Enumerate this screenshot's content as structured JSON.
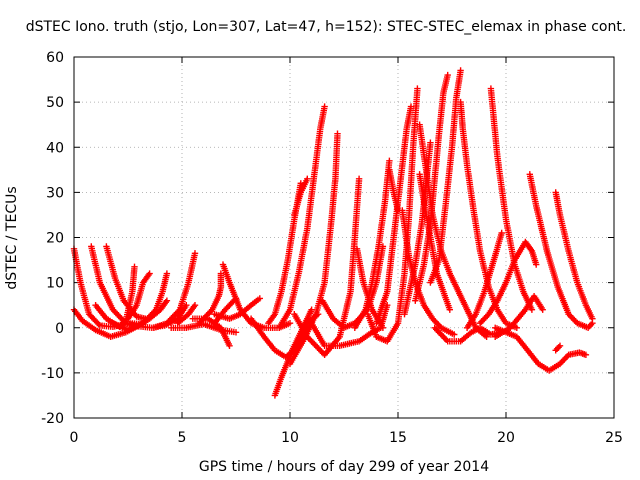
{
  "chart_data": {
    "type": "scatter",
    "title": "dSTEC Iono. truth (stjo, Lon=307, Lat=47, h=152): STEC-STEC_elemax in phase cont.",
    "xlabel": "GPS time / hours of day 299 of year 2014",
    "ylabel": "dSTEC  / TECUs",
    "xlim": [
      0,
      25
    ],
    "ylim": [
      -20,
      60
    ],
    "x_ticks": [
      0,
      5,
      10,
      15,
      20,
      25
    ],
    "y_ticks": [
      -20,
      -10,
      0,
      10,
      20,
      30,
      40,
      50,
      60
    ],
    "x_tick_labels": [
      "0",
      "5",
      "10",
      "15",
      "20",
      "25"
    ],
    "y_tick_labels": [
      "-20",
      "-10",
      "0",
      "10",
      "20",
      "30",
      "40",
      "50",
      "60"
    ],
    "grid": true,
    "marker": "plus",
    "color": "#ff0000",
    "arcs": [
      [
        [
          0.0,
          17.5
        ],
        [
          0.3,
          10
        ],
        [
          0.7,
          3
        ],
        [
          1.2,
          0.5
        ],
        [
          1.8,
          0.2
        ],
        [
          2.5,
          1
        ],
        [
          3.2,
          0.8
        ]
      ],
      [
        [
          0.0,
          4
        ],
        [
          0.4,
          1.5
        ],
        [
          1.0,
          -0.5
        ],
        [
          1.7,
          -2
        ],
        [
          2.4,
          -1
        ],
        [
          3.0,
          0.5
        ],
        [
          3.5,
          2
        ],
        [
          4.0,
          4
        ],
        [
          4.3,
          6
        ]
      ],
      [
        [
          0.8,
          18
        ],
        [
          1.2,
          10
        ],
        [
          1.8,
          4
        ],
        [
          2.4,
          1
        ],
        [
          3.0,
          0.3
        ],
        [
          3.6,
          0
        ],
        [
          4.2,
          0.5
        ],
        [
          4.8,
          2
        ],
        [
          5.2,
          5
        ]
      ],
      [
        [
          1.5,
          18
        ],
        [
          1.9,
          11
        ],
        [
          2.3,
          6
        ],
        [
          2.9,
          2.5
        ],
        [
          3.3,
          2
        ]
      ],
      [
        [
          1.0,
          5
        ],
        [
          1.5,
          2
        ],
        [
          2.1,
          0.2
        ],
        [
          2.4,
          1.5
        ],
        [
          2.7,
          8
        ],
        [
          2.8,
          13.5
        ]
      ],
      [
        [
          2.5,
          2
        ],
        [
          2.9,
          5
        ],
        [
          3.2,
          10
        ],
        [
          3.5,
          12
        ]
      ],
      [
        [
          1.8,
          1
        ],
        [
          2.5,
          -0.5
        ],
        [
          3.2,
          1
        ],
        [
          3.8,
          4
        ],
        [
          4.1,
          8
        ],
        [
          4.3,
          12
        ]
      ],
      [
        [
          3.7,
          0
        ],
        [
          4.3,
          1
        ],
        [
          4.9,
          4
        ],
        [
          5.3,
          10
        ],
        [
          5.6,
          16.5
        ]
      ],
      [
        [
          4.8,
          1
        ],
        [
          5.3,
          3
        ],
        [
          5.6,
          5
        ]
      ],
      [
        [
          4.5,
          0
        ],
        [
          5.2,
          0
        ],
        [
          6.0,
          0.8
        ],
        [
          6.8,
          -0.5
        ],
        [
          7.5,
          -1
        ]
      ],
      [
        [
          5.5,
          2
        ],
        [
          6.2,
          2
        ],
        [
          6.8,
          0
        ],
        [
          7.2,
          -4
        ]
      ],
      [
        [
          5.8,
          1
        ],
        [
          6.4,
          4
        ],
        [
          6.7,
          7
        ],
        [
          6.8,
          9
        ],
        [
          6.8,
          12
        ]
      ],
      [
        [
          6.9,
          14
        ],
        [
          7.2,
          10
        ],
        [
          7.7,
          4
        ],
        [
          8.2,
          1
        ],
        [
          8.8,
          0
        ],
        [
          9.5,
          0
        ],
        [
          10.0,
          1
        ]
      ],
      [
        [
          6.5,
          1
        ],
        [
          7.0,
          4
        ],
        [
          7.5,
          6.5
        ]
      ],
      [
        [
          6.5,
          3
        ],
        [
          7.2,
          2
        ],
        [
          7.7,
          3
        ],
        [
          8.2,
          5
        ],
        [
          8.6,
          6.5
        ]
      ],
      [
        [
          8.2,
          2
        ],
        [
          8.8,
          -2
        ],
        [
          9.3,
          -5
        ],
        [
          9.8,
          -6.5
        ],
        [
          10.2,
          -5
        ],
        [
          10.8,
          1
        ],
        [
          11.3,
          3
        ]
      ],
      [
        [
          9.0,
          1
        ],
        [
          9.3,
          3
        ],
        [
          9.6,
          8
        ],
        [
          9.9,
          15
        ],
        [
          10.2,
          24
        ],
        [
          10.5,
          32
        ]
      ],
      [
        [
          9.5,
          0
        ],
        [
          10.0,
          4
        ],
        [
          10.4,
          12
        ],
        [
          10.8,
          22
        ],
        [
          11.1,
          33
        ],
        [
          11.4,
          44
        ],
        [
          11.6,
          49
        ]
      ],
      [
        [
          10.2,
          25
        ],
        [
          10.5,
          30
        ],
        [
          10.8,
          33
        ]
      ],
      [
        [
          9.3,
          -15
        ],
        [
          9.6,
          -11
        ],
        [
          10.1,
          -5
        ],
        [
          10.6,
          0
        ],
        [
          11.0,
          4
        ]
      ],
      [
        [
          10.0,
          -8
        ],
        [
          10.6,
          -3
        ],
        [
          11.2,
          3
        ],
        [
          11.6,
          10
        ],
        [
          11.9,
          23
        ],
        [
          12.1,
          33
        ],
        [
          12.2,
          43
        ]
      ],
      [
        [
          10.2,
          3
        ],
        [
          10.8,
          -2
        ],
        [
          11.6,
          -6
        ],
        [
          12.3,
          -2
        ],
        [
          12.8,
          8
        ],
        [
          13.0,
          20
        ],
        [
          13.2,
          33
        ]
      ],
      [
        [
          11.0,
          1
        ],
        [
          11.6,
          -4
        ],
        [
          12.3,
          -4
        ],
        [
          13.2,
          -3
        ],
        [
          13.8,
          -1
        ],
        [
          14.2,
          0
        ],
        [
          14.5,
          5
        ]
      ],
      [
        [
          11.5,
          6
        ],
        [
          12.0,
          2
        ],
        [
          12.5,
          0
        ],
        [
          13.0,
          1
        ],
        [
          13.6,
          4
        ],
        [
          14.0,
          10
        ],
        [
          14.3,
          18
        ]
      ],
      [
        [
          13.1,
          17.5
        ],
        [
          13.4,
          10
        ],
        [
          13.8,
          4
        ],
        [
          14.3,
          0
        ]
      ],
      [
        [
          13.0,
          0
        ],
        [
          13.5,
          4
        ],
        [
          13.8,
          10
        ],
        [
          14.1,
          18
        ],
        [
          14.4,
          28
        ],
        [
          14.6,
          37
        ]
      ],
      [
        [
          13.6,
          3
        ],
        [
          14.0,
          -2
        ],
        [
          14.5,
          -3
        ],
        [
          15.0,
          1
        ],
        [
          15.3,
          12
        ],
        [
          15.5,
          24
        ],
        [
          15.7,
          40
        ],
        [
          15.9,
          53
        ]
      ],
      [
        [
          14.0,
          1
        ],
        [
          14.5,
          8
        ],
        [
          14.8,
          20
        ],
        [
          15.1,
          32
        ],
        [
          15.4,
          44
        ],
        [
          15.6,
          49
        ]
      ],
      [
        [
          14.6,
          35
        ],
        [
          14.8,
          30
        ],
        [
          15.0,
          26
        ]
      ],
      [
        [
          15.2,
          26
        ],
        [
          15.5,
          16
        ],
        [
          15.8,
          10
        ],
        [
          16.2,
          5
        ],
        [
          16.6,
          2
        ],
        [
          17.0,
          0
        ],
        [
          17.6,
          -1.5
        ]
      ],
      [
        [
          15.3,
          3
        ],
        [
          15.8,
          14
        ],
        [
          16.1,
          23
        ],
        [
          16.3,
          32
        ],
        [
          16.5,
          41
        ]
      ],
      [
        [
          16.0,
          34
        ],
        [
          16.2,
          28
        ],
        [
          16.5,
          20
        ],
        [
          16.8,
          12
        ],
        [
          17.1,
          8
        ],
        [
          17.4,
          4
        ]
      ],
      [
        [
          15.8,
          6
        ],
        [
          16.2,
          14
        ],
        [
          16.5,
          23
        ],
        [
          16.7,
          33
        ],
        [
          16.9,
          43
        ],
        [
          17.1,
          52
        ],
        [
          17.3,
          56
        ]
      ],
      [
        [
          16.5,
          10
        ],
        [
          16.9,
          15
        ],
        [
          17.2,
          27
        ],
        [
          17.5,
          40
        ],
        [
          17.7,
          51
        ],
        [
          17.9,
          57
        ]
      ],
      [
        [
          16.0,
          45
        ],
        [
          16.3,
          35
        ],
        [
          16.6,
          25
        ],
        [
          17.0,
          17
        ],
        [
          17.4,
          12
        ],
        [
          17.8,
          8
        ],
        [
          18.2,
          4
        ],
        [
          18.6,
          0
        ],
        [
          19.1,
          -2
        ]
      ],
      [
        [
          16.7,
          0
        ],
        [
          17.3,
          -3
        ],
        [
          17.9,
          -3
        ],
        [
          18.4,
          -1
        ],
        [
          18.8,
          0
        ],
        [
          19.3,
          -1.5
        ],
        [
          19.8,
          -1
        ]
      ],
      [
        [
          17.9,
          50
        ],
        [
          18.0,
          44
        ],
        [
          18.2,
          36
        ],
        [
          18.5,
          26
        ],
        [
          18.8,
          17
        ],
        [
          19.2,
          9
        ],
        [
          19.6,
          4
        ],
        [
          20.0,
          1
        ],
        [
          20.5,
          0
        ]
      ],
      [
        [
          18.2,
          0
        ],
        [
          18.6,
          3
        ],
        [
          19.0,
          8
        ],
        [
          19.5,
          16
        ],
        [
          19.8,
          21
        ]
      ],
      [
        [
          19.3,
          53
        ],
        [
          19.6,
          38
        ],
        [
          20.0,
          24
        ],
        [
          20.4,
          14
        ],
        [
          20.8,
          8
        ],
        [
          21.2,
          4
        ]
      ],
      [
        [
          18.8,
          1
        ],
        [
          19.2,
          3
        ],
        [
          19.6,
          6
        ],
        [
          20.0,
          10
        ],
        [
          20.4,
          15
        ],
        [
          20.9,
          19
        ],
        [
          21.2,
          17
        ],
        [
          21.4,
          14
        ]
      ],
      [
        [
          19.5,
          -2
        ],
        [
          20.2,
          0
        ],
        [
          20.9,
          4
        ],
        [
          21.3,
          7
        ],
        [
          21.7,
          4
        ]
      ],
      [
        [
          19.5,
          0
        ],
        [
          20.0,
          -1
        ],
        [
          20.5,
          -2
        ],
        [
          21.0,
          -5
        ],
        [
          21.5,
          -8
        ],
        [
          22.0,
          -9.5
        ],
        [
          22.5,
          -8
        ],
        [
          22.9,
          -6
        ],
        [
          23.4,
          -5.5
        ],
        [
          23.7,
          -6
        ]
      ],
      [
        [
          21.1,
          34
        ],
        [
          21.4,
          27
        ],
        [
          21.9,
          17
        ],
        [
          22.4,
          9
        ],
        [
          22.9,
          3
        ],
        [
          23.3,
          1
        ],
        [
          23.8,
          0
        ],
        [
          24.0,
          1
        ]
      ],
      [
        [
          22.3,
          30
        ],
        [
          22.5,
          25
        ],
        [
          22.9,
          17
        ],
        [
          23.3,
          10
        ],
        [
          23.7,
          5
        ],
        [
          24.0,
          2
        ]
      ],
      [
        [
          22.3,
          -5
        ],
        [
          22.5,
          -4
        ]
      ]
    ]
  }
}
